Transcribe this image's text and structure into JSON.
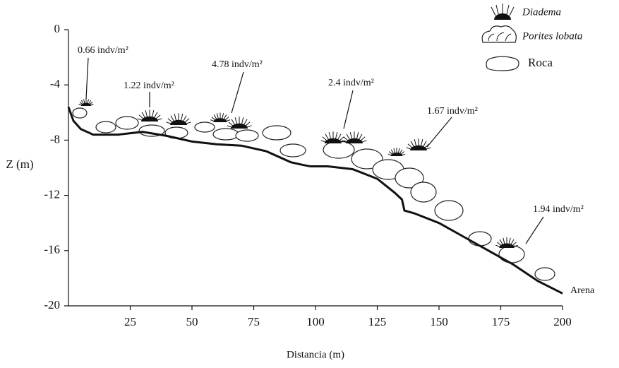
{
  "chart_data": {
    "type": "line",
    "xlabel": "Distancia (m)",
    "ylabel": "Z (m)",
    "x": [
      0,
      2,
      5,
      10,
      20,
      30,
      40,
      50,
      60,
      70,
      80,
      90,
      95,
      98,
      105,
      115,
      125,
      132,
      135,
      136,
      140,
      150,
      160,
      170,
      180,
      190,
      200
    ],
    "values": [
      -5.6,
      -6.6,
      -7.2,
      -7.6,
      -7.6,
      -7.4,
      -7.7,
      -8.1,
      -8.3,
      -8.4,
      -8.8,
      -9.6,
      -9.8,
      -9.9,
      -9.9,
      -10.1,
      -10.8,
      -11.8,
      -12.3,
      -13.1,
      -13.3,
      -14.0,
      -15.0,
      -16.0,
      -17.0,
      -18.2,
      -19.1
    ],
    "color": "#111111",
    "xlim": [
      0,
      200
    ],
    "ylim": [
      -20,
      0
    ],
    "xticks": [
      25,
      50,
      75,
      100,
      125,
      150,
      175,
      200
    ],
    "yticks": [
      0,
      -4,
      -8,
      -12,
      -16,
      -20
    ],
    "legend": [
      "Diadema",
      "Porites lobata",
      "Roca"
    ],
    "annotations": [
      "0.66 indv/m²",
      "1.22 indv/m²",
      "4.78 indv/m²",
      "2.4 indv/m²",
      "1.67 indv/m²",
      "1.94 indv/m²",
      "Arena"
    ]
  }
}
